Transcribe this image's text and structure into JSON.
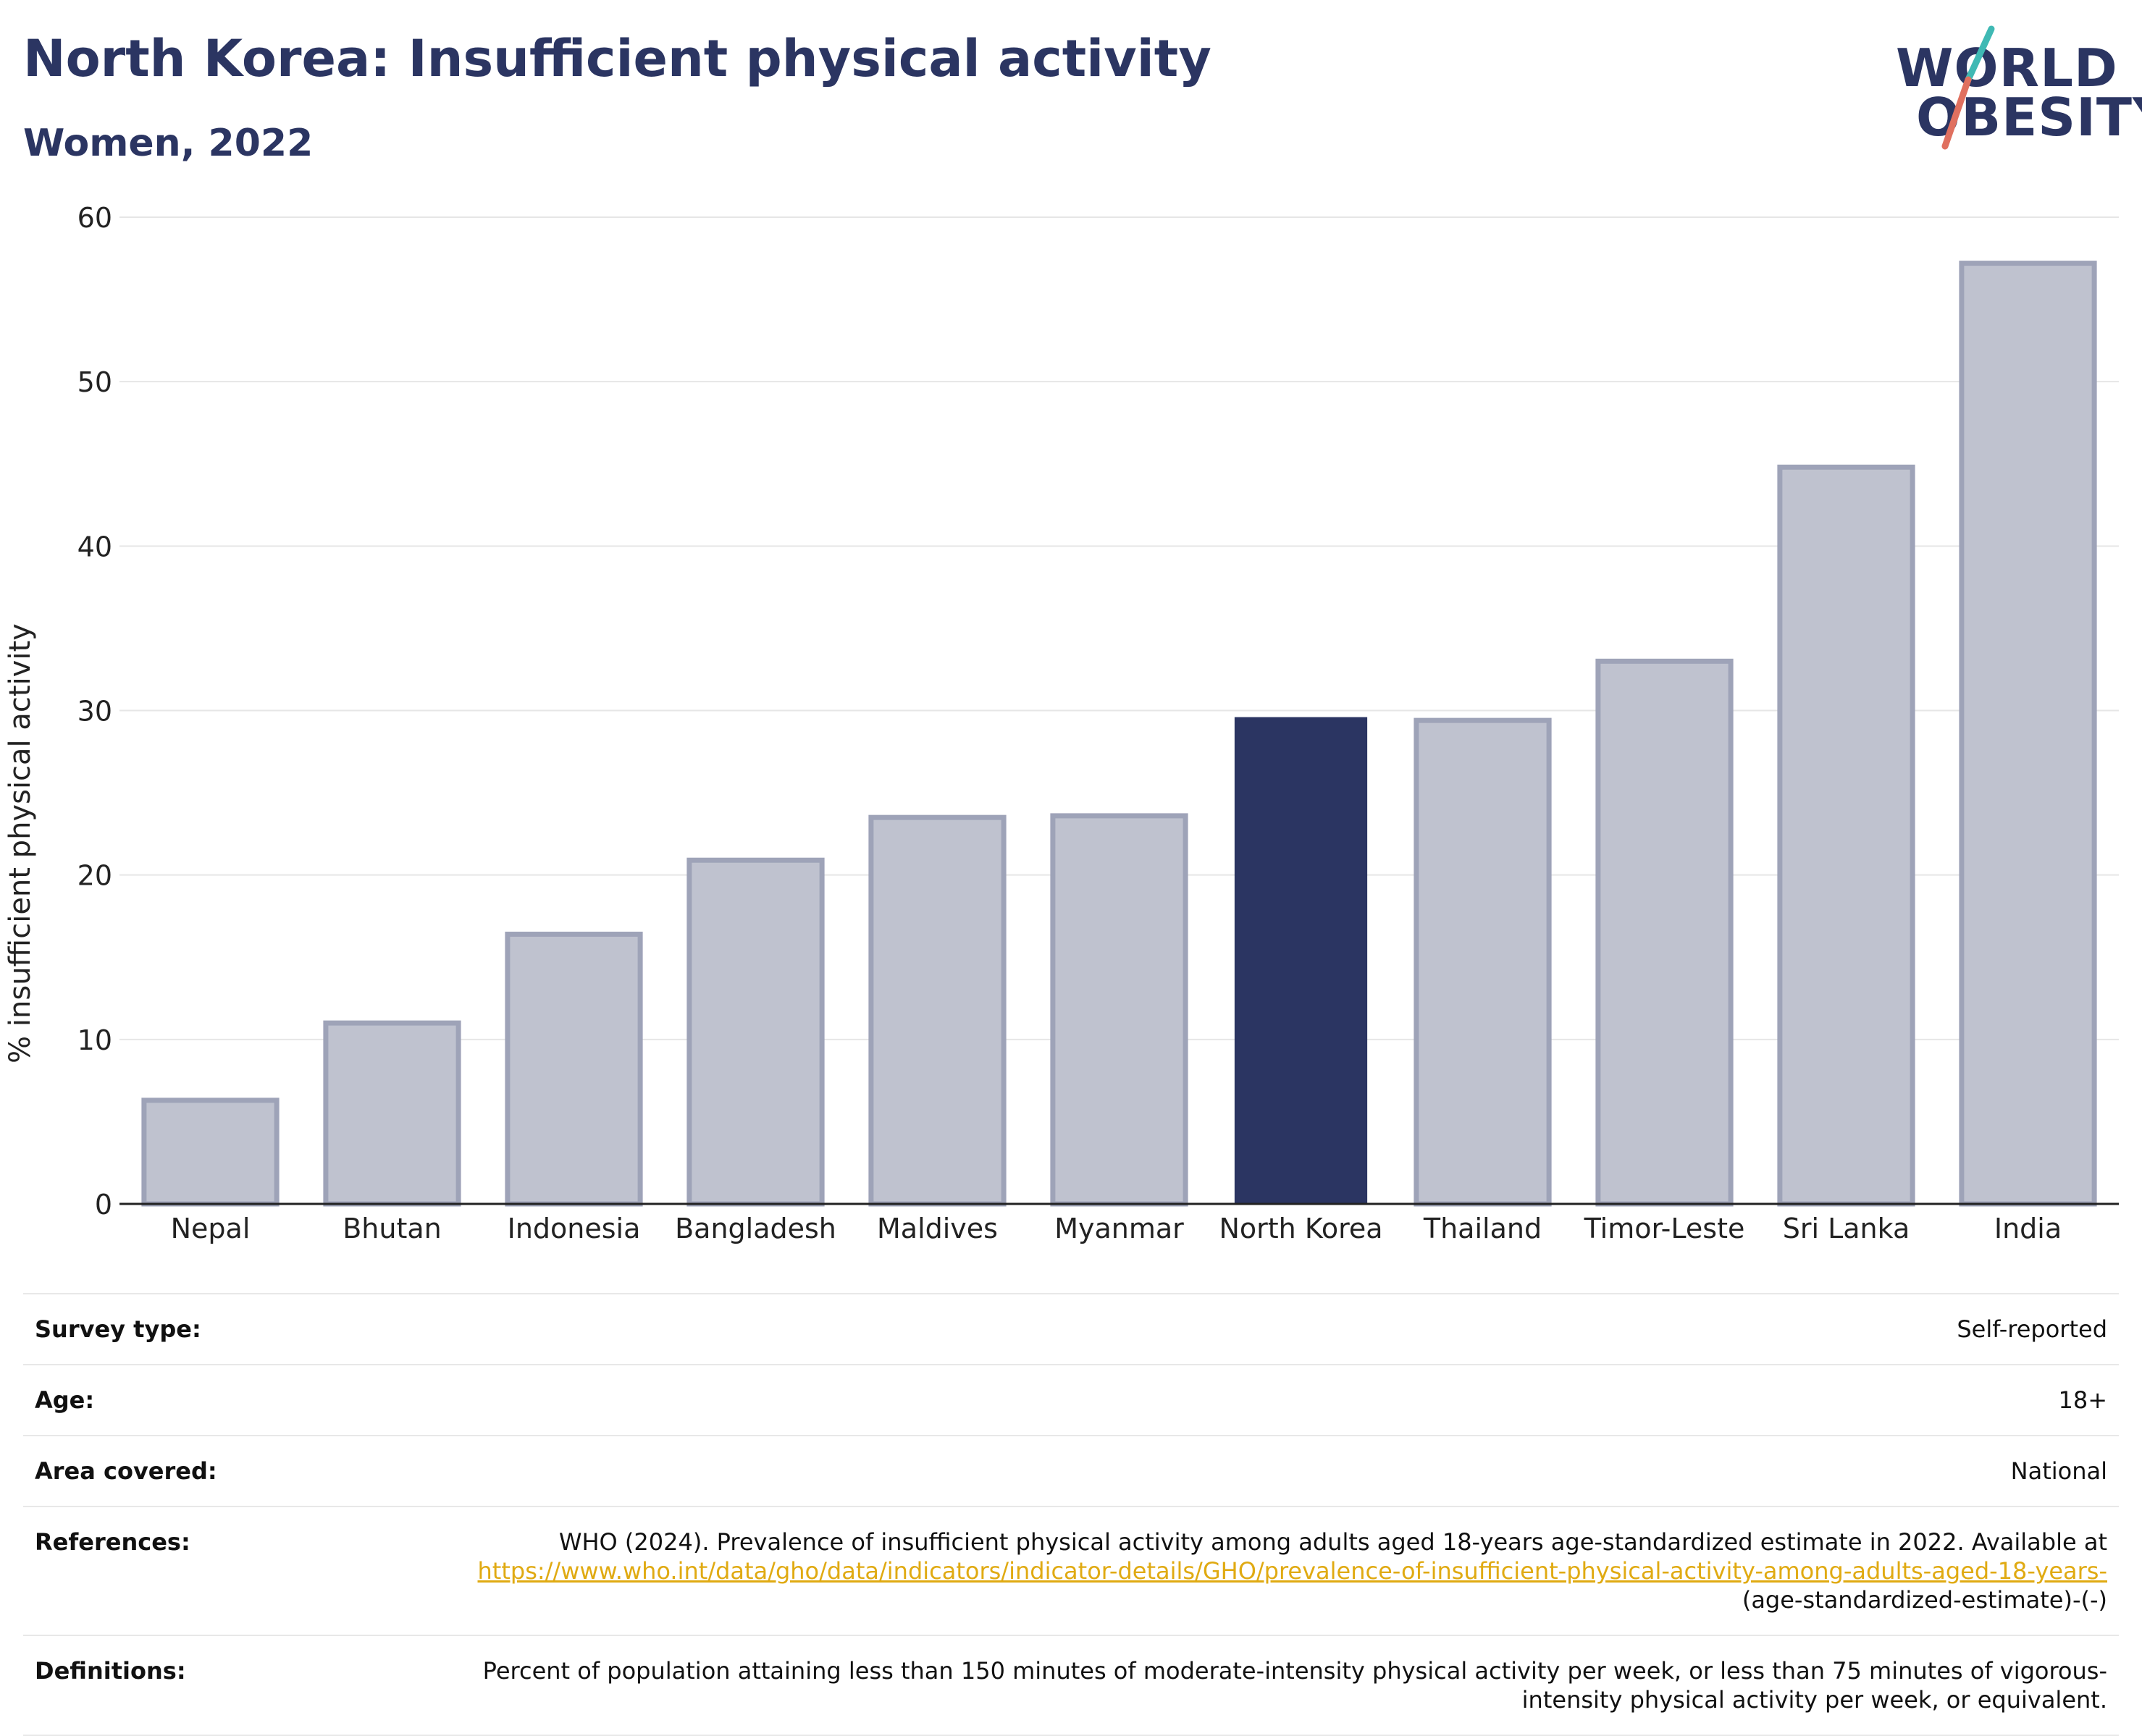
{
  "header": {
    "title": "North Korea: Insufficient physical activity",
    "subtitle": "Women, 2022",
    "logo": {
      "line1": "WORLD",
      "line2": "OBESITY",
      "accent_colors": [
        "#3fb9b4",
        "#e0705f"
      ]
    }
  },
  "colors": {
    "title": "#2b3562",
    "highlight_bar": "#2b3562",
    "other_bar_fill": "#bfc2cf",
    "other_bar_stroke": "#9ea3b8",
    "gridline": "#e6e6e6",
    "axis": "#222222",
    "link": "#e0aa12"
  },
  "chart_data": {
    "type": "bar",
    "categories": [
      "Nepal",
      "Bhutan",
      "Indonesia",
      "Bangladesh",
      "Maldives",
      "Myanmar",
      "North Korea",
      "Thailand",
      "Timor-Leste",
      "Sri Lanka",
      "India"
    ],
    "values": [
      6.3,
      11.0,
      16.4,
      20.9,
      23.5,
      23.6,
      29.6,
      29.4,
      33.0,
      44.8,
      57.2
    ],
    "highlight": "North Korea",
    "ylabel": "% insufficient physical activity",
    "xlabel": "",
    "ylim": [
      0,
      60
    ],
    "yticks": [
      0,
      10,
      20,
      30,
      40,
      50,
      60
    ],
    "grid": true,
    "legend": "none"
  },
  "meta": {
    "survey_type": {
      "label": "Survey type:",
      "value": "Self-reported"
    },
    "age": {
      "label": "Age:",
      "value": "18+"
    },
    "area": {
      "label": "Area covered:",
      "value": "National"
    },
    "references": {
      "label": "References:",
      "text": "WHO (2024). Prevalence of insufficient physical activity among adults aged 18-years age-standardized estimate in 2022. Available at",
      "link": "https://www.who.int/data/gho/data/indicators/indicator-details/GHO/prevalence-of-insufficient-physical-activity-among-adults-aged-18-years-",
      "suffix": "(age-standardized-estimate)-(-)"
    },
    "definitions": {
      "label": "Definitions:",
      "value": "Percent of population attaining less than 150 minutes of moderate-intensity physical activity per week, or less than 75 minutes of vigorous-intensity physical activity per week, or equivalent."
    }
  }
}
